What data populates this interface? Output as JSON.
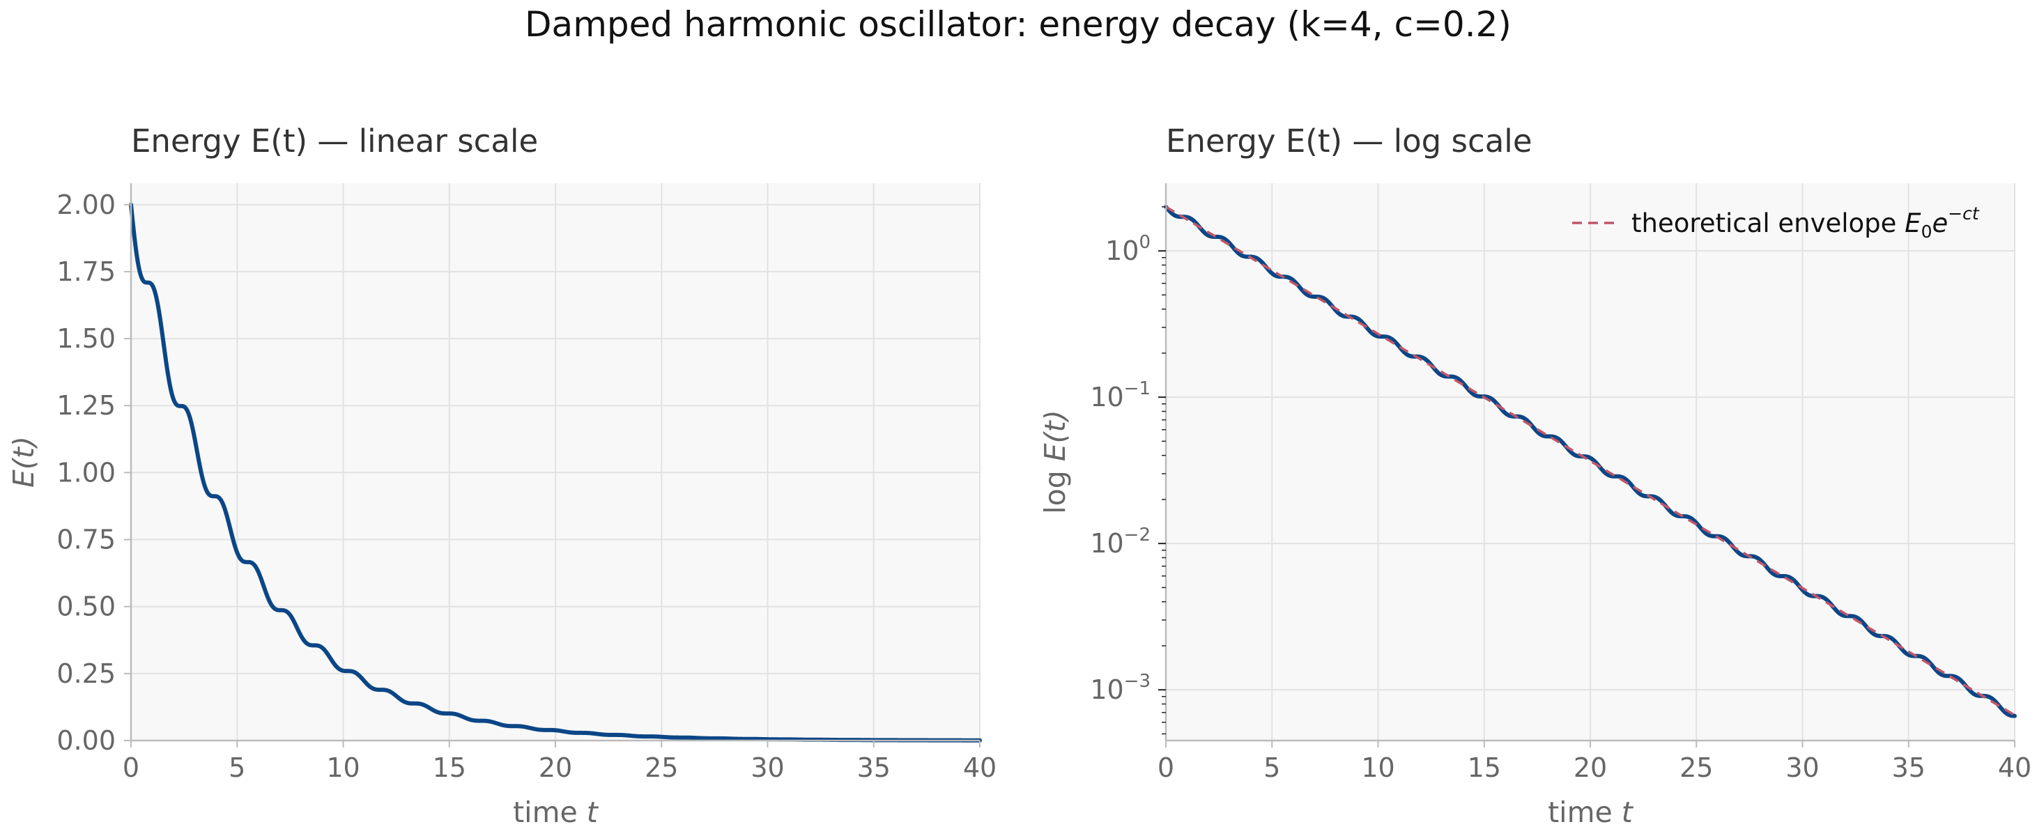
{
  "figure": {
    "title": "Damped harmonic oscillator: energy decay (k=4, c=0.2)"
  },
  "colors": {
    "energy_curve": "#0b4686",
    "envelope": "#c0566a",
    "plot_background": "#f8f8f8",
    "grid": "#e2e2e2",
    "axis_spine": "#bbbbbb",
    "text": "#666666"
  },
  "chart_data": [
    {
      "type": "line",
      "title": "Energy E(t) — linear scale",
      "xlabel": "time",
      "xlabel_var": "t",
      "ylabel": "E(t)",
      "xlim": [
        0,
        40
      ],
      "ylim": [
        0,
        2.08
      ],
      "yscale": "linear",
      "grid": true,
      "x_ticks": [
        "0",
        "5",
        "10",
        "15",
        "20",
        "25",
        "30",
        "35",
        "40"
      ],
      "y_ticks": [
        "0.00",
        "0.25",
        "0.50",
        "0.75",
        "1.00",
        "1.25",
        "1.50",
        "1.75",
        "2.00"
      ],
      "model": {
        "E0": 2.0,
        "k": 4,
        "c": 0.2
      },
      "series": [
        {
          "role": "energy",
          "t_start": 0,
          "t_end": 40
        }
      ]
    },
    {
      "type": "line",
      "title": "Energy E(t) — log scale",
      "xlabel": "time",
      "xlabel_var": "t",
      "ylabel": "log E(t)",
      "xlim": [
        0,
        40
      ],
      "ylim": [
        0.00045,
        2.9
      ],
      "yscale": "log",
      "grid": true,
      "legend_position": "top-right",
      "x_ticks": [
        "0",
        "5",
        "10",
        "15",
        "20",
        "25",
        "30",
        "35",
        "40"
      ],
      "y_ticks": [
        {
          "base": "10",
          "exp": "0",
          "value": 1
        },
        {
          "base": "10",
          "exp": "−1",
          "value": 0.1
        },
        {
          "base": "10",
          "exp": "−2",
          "value": 0.01
        },
        {
          "base": "10",
          "exp": "−3",
          "value": 0.001
        }
      ],
      "model": {
        "E0": 2.0,
        "k": 4,
        "c": 0.2
      },
      "series": [
        {
          "role": "energy",
          "t_start": 0,
          "t_end": 40
        },
        {
          "role": "envelope",
          "name": "theoretical envelope",
          "name_math": {
            "sym": "E",
            "sub": "0",
            "mid": "e",
            "sup": "−ct"
          },
          "t_start": 0,
          "t_end": 40
        }
      ]
    }
  ]
}
